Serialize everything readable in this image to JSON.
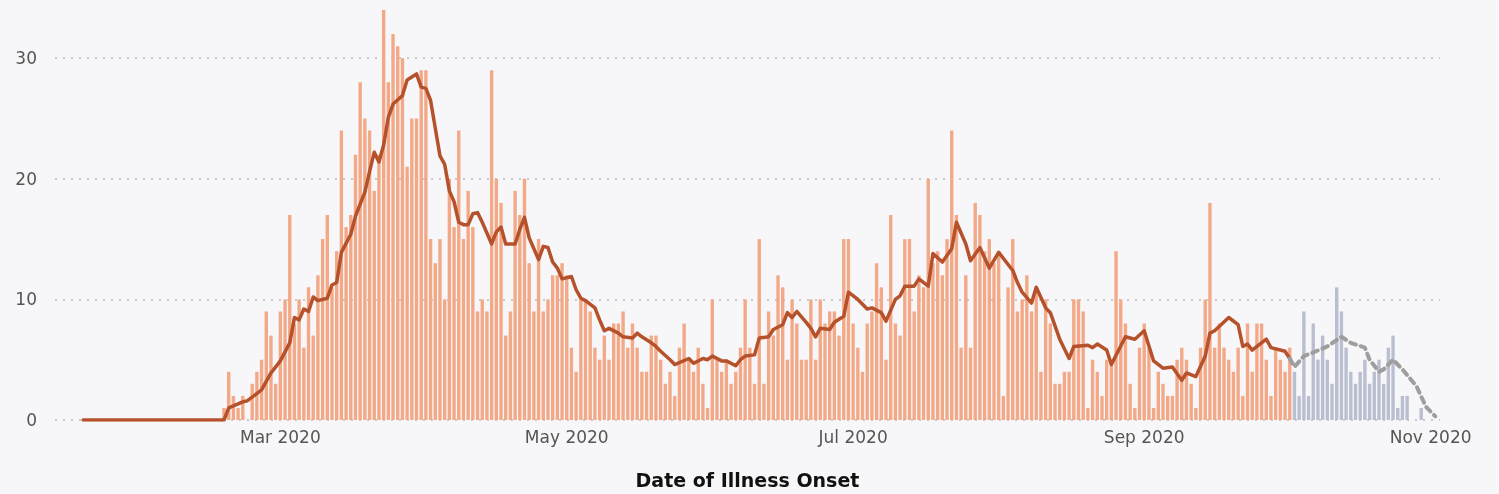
{
  "chart_data": {
    "type": "bar",
    "xlabel": "Date of Illness Onset",
    "xlim": [
      "2020-01-13",
      "2020-11-03"
    ],
    "xticks": [
      {
        "value": "2020-03-01",
        "label": "Mar 2020"
      },
      {
        "value": "2020-05-01",
        "label": "May 2020"
      },
      {
        "value": "2020-07-01",
        "label": "Jul 2020"
      },
      {
        "value": "2020-09-01",
        "label": "Sep 2020"
      },
      {
        "value": "2020-11-01",
        "label": "Nov 2020"
      }
    ],
    "ylim": [
      0,
      34
    ],
    "yticks": [
      0,
      10,
      20,
      30
    ],
    "grid": "y",
    "series": [
      {
        "color": "#f3a987",
        "x": [
          "2020-02-18",
          "2020-02-19",
          "2020-02-20",
          "2020-02-21",
          "2020-02-22",
          "2020-02-23",
          "2020-02-24",
          "2020-02-25",
          "2020-02-26",
          "2020-02-27",
          "2020-02-28",
          "2020-02-29",
          "2020-03-01",
          "2020-03-02",
          "2020-03-03",
          "2020-03-04",
          "2020-03-05",
          "2020-03-06",
          "2020-03-07",
          "2020-03-08",
          "2020-03-09",
          "2020-03-10",
          "2020-03-11",
          "2020-03-12",
          "2020-03-13",
          "2020-03-14",
          "2020-03-15",
          "2020-03-16",
          "2020-03-17",
          "2020-03-18",
          "2020-03-19",
          "2020-03-20",
          "2020-03-21",
          "2020-03-22",
          "2020-03-23",
          "2020-03-24",
          "2020-03-25",
          "2020-03-26",
          "2020-03-27",
          "2020-03-28",
          "2020-03-29",
          "2020-03-30",
          "2020-03-31",
          "2020-04-01",
          "2020-04-02",
          "2020-04-03",
          "2020-04-04",
          "2020-04-05",
          "2020-04-06",
          "2020-04-07",
          "2020-04-08",
          "2020-04-09",
          "2020-04-10",
          "2020-04-11",
          "2020-04-12",
          "2020-04-13",
          "2020-04-14",
          "2020-04-15",
          "2020-04-16",
          "2020-04-17",
          "2020-04-18",
          "2020-04-19",
          "2020-04-20",
          "2020-04-21",
          "2020-04-22",
          "2020-04-23",
          "2020-04-24",
          "2020-04-25",
          "2020-04-26",
          "2020-04-27",
          "2020-04-28",
          "2020-04-29",
          "2020-04-30",
          "2020-05-01",
          "2020-05-02",
          "2020-05-03",
          "2020-05-04",
          "2020-05-05",
          "2020-05-06",
          "2020-05-07",
          "2020-05-08",
          "2020-05-09",
          "2020-05-10",
          "2020-05-11",
          "2020-05-12",
          "2020-05-13",
          "2020-05-14",
          "2020-05-15",
          "2020-05-16",
          "2020-05-17",
          "2020-05-18",
          "2020-05-19",
          "2020-05-20",
          "2020-05-21",
          "2020-05-22",
          "2020-05-23",
          "2020-05-24",
          "2020-05-25",
          "2020-05-26",
          "2020-05-27",
          "2020-05-28",
          "2020-05-29",
          "2020-05-30",
          "2020-05-31",
          "2020-06-01",
          "2020-06-02",
          "2020-06-03",
          "2020-06-04",
          "2020-06-05",
          "2020-06-06",
          "2020-06-07",
          "2020-06-08",
          "2020-06-09",
          "2020-06-10",
          "2020-06-11",
          "2020-06-12",
          "2020-06-13",
          "2020-06-14",
          "2020-06-15",
          "2020-06-16",
          "2020-06-17",
          "2020-06-18",
          "2020-06-19",
          "2020-06-20",
          "2020-06-21",
          "2020-06-22",
          "2020-06-23",
          "2020-06-24",
          "2020-06-25",
          "2020-06-26",
          "2020-06-27",
          "2020-06-28",
          "2020-06-29",
          "2020-06-30",
          "2020-07-01",
          "2020-07-02",
          "2020-07-03",
          "2020-07-04",
          "2020-07-05",
          "2020-07-06",
          "2020-07-07",
          "2020-07-08",
          "2020-07-09",
          "2020-07-10",
          "2020-07-11",
          "2020-07-12",
          "2020-07-13",
          "2020-07-14",
          "2020-07-15",
          "2020-07-16",
          "2020-07-17",
          "2020-07-18",
          "2020-07-19",
          "2020-07-20",
          "2020-07-21",
          "2020-07-22",
          "2020-07-23",
          "2020-07-24",
          "2020-07-25",
          "2020-07-26",
          "2020-07-27",
          "2020-07-28",
          "2020-07-29",
          "2020-07-30",
          "2020-07-31",
          "2020-08-01",
          "2020-08-02",
          "2020-08-03",
          "2020-08-04",
          "2020-08-05",
          "2020-08-06",
          "2020-08-07",
          "2020-08-08",
          "2020-08-09",
          "2020-08-10",
          "2020-08-11",
          "2020-08-12",
          "2020-08-13",
          "2020-08-14",
          "2020-08-15",
          "2020-08-16",
          "2020-08-17",
          "2020-08-18",
          "2020-08-19",
          "2020-08-20",
          "2020-08-21",
          "2020-08-22",
          "2020-08-23",
          "2020-08-24",
          "2020-08-25",
          "2020-08-26",
          "2020-08-27",
          "2020-08-28",
          "2020-08-29",
          "2020-08-30",
          "2020-08-31",
          "2020-09-01",
          "2020-09-02",
          "2020-09-03",
          "2020-09-04",
          "2020-09-05",
          "2020-09-06",
          "2020-09-07",
          "2020-09-08",
          "2020-09-09",
          "2020-09-10",
          "2020-09-11",
          "2020-09-12",
          "2020-09-13",
          "2020-09-14",
          "2020-09-15",
          "2020-09-16",
          "2020-09-17",
          "2020-09-18",
          "2020-09-19",
          "2020-09-20",
          "2020-09-21",
          "2020-09-22",
          "2020-09-23",
          "2020-09-24",
          "2020-09-25",
          "2020-09-26",
          "2020-09-27",
          "2020-09-28",
          "2020-09-29",
          "2020-09-30",
          "2020-10-01",
          "2020-10-02"
        ],
        "values": [
          1,
          4,
          2,
          1,
          2,
          0,
          3,
          4,
          5,
          9,
          7,
          3,
          9,
          10,
          17,
          8,
          10,
          6,
          11,
          7,
          12,
          15,
          17,
          11,
          14,
          24,
          16,
          17,
          22,
          28,
          25,
          24,
          19,
          22,
          34,
          28,
          32,
          31,
          30,
          21,
          25,
          25,
          29,
          29,
          15,
          13,
          15,
          10,
          20,
          16,
          24,
          15,
          19,
          16,
          9,
          10,
          9,
          29,
          20,
          18,
          7,
          9,
          19,
          17,
          20,
          13,
          9,
          15,
          9,
          10,
          12,
          12,
          13,
          12,
          6,
          4,
          10,
          10,
          9,
          6,
          5,
          7,
          5,
          8,
          8,
          9,
          6,
          8,
          6,
          4,
          4,
          7,
          7,
          5,
          3,
          4,
          2,
          6,
          8,
          5,
          4,
          6,
          3,
          1,
          10,
          5,
          4,
          5,
          3,
          4,
          6,
          10,
          6,
          3,
          15,
          3,
          9,
          7,
          12,
          11,
          5,
          10,
          8,
          5,
          5,
          10,
          5,
          10,
          8,
          9,
          9,
          7,
          15,
          15,
          8,
          6,
          4,
          8,
          9,
          13,
          11,
          5,
          17,
          8,
          7,
          15,
          15,
          9,
          12,
          11,
          20,
          13,
          14,
          12,
          15,
          24,
          17,
          6,
          12,
          6,
          18,
          17,
          14,
          15,
          13,
          14,
          2,
          11,
          15,
          9,
          10,
          12,
          9,
          11,
          4,
          10,
          8,
          3,
          3,
          4,
          4,
          10,
          10,
          9,
          1,
          5,
          4,
          2,
          5,
          5,
          14,
          10,
          8,
          3,
          1,
          6,
          8,
          6,
          1,
          4,
          3,
          2,
          2,
          5,
          6,
          5,
          3,
          1,
          6,
          10,
          18,
          6,
          8,
          6,
          5,
          4,
          6,
          2,
          8,
          4,
          8,
          8,
          5,
          2,
          6,
          5,
          4,
          6
        ]
      },
      {
        "color": "#b9bfd1",
        "x": [
          "2020-10-03",
          "2020-10-04",
          "2020-10-05",
          "2020-10-06",
          "2020-10-07",
          "2020-10-08",
          "2020-10-09",
          "2020-10-10",
          "2020-10-11",
          "2020-10-12",
          "2020-10-13",
          "2020-10-14",
          "2020-10-15",
          "2020-10-16",
          "2020-10-17",
          "2020-10-18",
          "2020-10-19",
          "2020-10-20",
          "2020-10-21",
          "2020-10-22",
          "2020-10-23",
          "2020-10-24",
          "2020-10-25",
          "2020-10-26",
          "2020-10-27",
          "2020-10-28",
          "2020-10-29",
          "2020-10-30",
          "2020-10-31"
        ],
        "values": [
          4,
          2,
          9,
          2,
          8,
          5,
          7,
          5,
          3,
          11,
          9,
          6,
          4,
          3,
          4,
          5,
          3,
          4,
          5,
          3,
          6,
          7,
          1,
          2,
          2,
          0,
          0,
          1,
          0
        ]
      },
      {
        "type": "line",
        "color": "#b5512b",
        "line_style": "solid",
        "marker": "none",
        "x": [
          "2020-01-19",
          "2020-02-18",
          "2020-02-19",
          "2020-02-22",
          "2020-02-23",
          "2020-02-26",
          "2020-02-28",
          "2020-03-01",
          "2020-03-03",
          "2020-03-04",
          "2020-03-05",
          "2020-03-06",
          "2020-03-07",
          "2020-03-08",
          "2020-03-09",
          "2020-03-11",
          "2020-03-12",
          "2020-03-13",
          "2020-03-14",
          "2020-03-16",
          "2020-03-17",
          "2020-03-19",
          "2020-03-20",
          "2020-03-21",
          "2020-03-22",
          "2020-03-23",
          "2020-03-24",
          "2020-03-25",
          "2020-03-27",
          "2020-03-28",
          "2020-03-30",
          "2020-03-31",
          "2020-04-01",
          "2020-04-02",
          "2020-04-03",
          "2020-04-04",
          "2020-04-05",
          "2020-04-06",
          "2020-04-07",
          "2020-04-08",
          "2020-04-09",
          "2020-04-10",
          "2020-04-11",
          "2020-04-12",
          "2020-04-13",
          "2020-04-15",
          "2020-04-16",
          "2020-04-17",
          "2020-04-18",
          "2020-04-20",
          "2020-04-21",
          "2020-04-22",
          "2020-04-23",
          "2020-04-25",
          "2020-04-26",
          "2020-04-27",
          "2020-04-28",
          "2020-04-29",
          "2020-04-30",
          "2020-05-02",
          "2020-05-03",
          "2020-05-04",
          "2020-05-05",
          "2020-05-07",
          "2020-05-08",
          "2020-05-09",
          "2020-05-10",
          "2020-05-12",
          "2020-05-13",
          "2020-05-15",
          "2020-05-16",
          "2020-05-17",
          "2020-05-19",
          "2020-05-20",
          "2020-05-21",
          "2020-05-23",
          "2020-05-24",
          "2020-05-27",
          "2020-05-28",
          "2020-05-30",
          "2020-05-31",
          "2020-06-01",
          "2020-06-03",
          "2020-06-04",
          "2020-06-06",
          "2020-06-07",
          "2020-06-08",
          "2020-06-10",
          "2020-06-11",
          "2020-06-13",
          "2020-06-14",
          "2020-06-16",
          "2020-06-17",
          "2020-06-18",
          "2020-06-19",
          "2020-06-21",
          "2020-06-22",
          "2020-06-23",
          "2020-06-24",
          "2020-06-26",
          "2020-06-27",
          "2020-06-29",
          "2020-06-30",
          "2020-07-02",
          "2020-07-04",
          "2020-07-05",
          "2020-07-07",
          "2020-07-08",
          "2020-07-10",
          "2020-07-11",
          "2020-07-12",
          "2020-07-14",
          "2020-07-15",
          "2020-07-17",
          "2020-07-18",
          "2020-07-20",
          "2020-07-22",
          "2020-07-23",
          "2020-07-25",
          "2020-07-26",
          "2020-07-28",
          "2020-07-30",
          "2020-08-01",
          "2020-08-04",
          "2020-08-05",
          "2020-08-06",
          "2020-08-08",
          "2020-08-09",
          "2020-08-11",
          "2020-08-12",
          "2020-08-14",
          "2020-08-16",
          "2020-08-17",
          "2020-08-20",
          "2020-08-21",
          "2020-08-22",
          "2020-08-24",
          "2020-08-25",
          "2020-08-28",
          "2020-08-30",
          "2020-09-01",
          "2020-09-03",
          "2020-09-05",
          "2020-09-07",
          "2020-09-09",
          "2020-09-10",
          "2020-09-12",
          "2020-09-14",
          "2020-09-15",
          "2020-09-16",
          "2020-09-19",
          "2020-09-21",
          "2020-09-22",
          "2020-09-23",
          "2020-09-24",
          "2020-09-27",
          "2020-09-28",
          "2020-10-01",
          "2020-10-02"
        ],
        "values": [
          0,
          0,
          1.0,
          1.5,
          1.6,
          2.5,
          3.9,
          4.9,
          6.4,
          8.5,
          8.3,
          9.2,
          9.0,
          10.2,
          9.9,
          10.1,
          11.2,
          11.4,
          13.9,
          15.4,
          16.9,
          18.9,
          20.6,
          22.2,
          21.4,
          22.8,
          25.1,
          26.2,
          26.9,
          28.2,
          28.7,
          27.6,
          27.5,
          26.5,
          24.2,
          21.9,
          21.2,
          19.0,
          18.1,
          16.4,
          16.2,
          16.2,
          17.1,
          17.2,
          16.4,
          14.6,
          15.6,
          16.0,
          14.6,
          14.6,
          15.8,
          16.8,
          15.1,
          13.3,
          14.4,
          14.3,
          13.1,
          12.6,
          11.7,
          11.9,
          10.8,
          10.1,
          9.9,
          9.3,
          8.3,
          7.4,
          7.6,
          7.2,
          6.9,
          6.8,
          7.2,
          6.9,
          6.4,
          6.1,
          5.7,
          5.0,
          4.6,
          5.1,
          4.7,
          5.1,
          5.0,
          5.3,
          4.9,
          4.9,
          4.5,
          5.0,
          5.3,
          5.4,
          6.8,
          6.9,
          7.5,
          7.9,
          8.9,
          8.5,
          9.0,
          8.1,
          7.6,
          6.9,
          7.6,
          7.5,
          8.1,
          8.6,
          10.6,
          10.0,
          9.2,
          9.3,
          8.9,
          8.2,
          10.0,
          10.3,
          11.1,
          11.1,
          11.7,
          11.1,
          13.8,
          13.1,
          14.2,
          16.4,
          14.6,
          13.2,
          14.3,
          12.6,
          13.9,
          12.4,
          11.4,
          10.6,
          9.7,
          11.0,
          9.3,
          8.9,
          6.7,
          5.1,
          6.1,
          6.2,
          6.0,
          6.3,
          5.8,
          4.6,
          6.9,
          6.7,
          7.4,
          4.9,
          4.3,
          4.4,
          3.3,
          3.9,
          3.6,
          5.3,
          7.2,
          7.4,
          8.5,
          7.9,
          6.1,
          6.3,
          5.8,
          6.7,
          6.0,
          5.7,
          5.1
        ]
      },
      {
        "type": "line",
        "color": "#9e9e9e",
        "line_style": "dashed",
        "marker": "none",
        "x": [
          "2020-10-02",
          "2020-10-03",
          "2020-10-05",
          "2020-10-07",
          "2020-10-10",
          "2020-10-13",
          "2020-10-15",
          "2020-10-18",
          "2020-10-19",
          "2020-10-21",
          "2020-10-22",
          "2020-10-24",
          "2020-10-26",
          "2020-10-29",
          "2020-10-31",
          "2020-11-02"
        ],
        "values": [
          5.1,
          4.4,
          5.3,
          5.6,
          6.1,
          6.9,
          6.4,
          6.0,
          5.0,
          4.0,
          4.2,
          5.0,
          4.2,
          2.8,
          1.1,
          0.3
        ]
      }
    ]
  }
}
